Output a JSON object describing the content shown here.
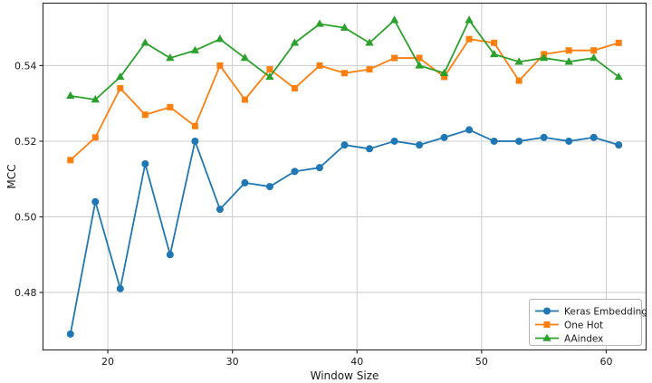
{
  "figure": {
    "background": "#ffffff"
  },
  "chart_data": {
    "type": "line",
    "title": "",
    "xlabel": "Window Size",
    "ylabel": "MCC",
    "x": [
      17,
      19,
      21,
      23,
      25,
      27,
      29,
      31,
      33,
      35,
      37,
      39,
      41,
      43,
      45,
      47,
      49,
      51,
      53,
      55,
      57,
      59,
      61
    ],
    "series": [
      {
        "name": "Keras Embedding",
        "color": "#1f77b4",
        "marker": "circle",
        "values": [
          0.469,
          0.504,
          0.481,
          0.514,
          0.49,
          0.52,
          0.502,
          0.509,
          0.508,
          0.512,
          0.513,
          0.519,
          0.518,
          0.52,
          0.519,
          0.521,
          0.523,
          0.52,
          0.52,
          0.521,
          0.52,
          0.521,
          0.519
        ]
      },
      {
        "name": "One Hot",
        "color": "#ff7f0e",
        "marker": "square",
        "values": [
          0.515,
          0.521,
          0.534,
          0.527,
          0.529,
          0.524,
          0.54,
          0.531,
          0.539,
          0.534,
          0.54,
          0.538,
          0.539,
          0.542,
          0.542,
          0.537,
          0.547,
          0.546,
          0.536,
          0.543,
          0.544,
          0.544,
          0.546
        ]
      },
      {
        "name": "AAindex",
        "color": "#2ca02c",
        "marker": "triangle",
        "values": [
          0.532,
          0.531,
          0.537,
          0.546,
          0.542,
          0.544,
          0.547,
          0.542,
          0.537,
          0.546,
          0.551,
          0.55,
          0.546,
          0.552,
          0.54,
          0.538,
          0.552,
          0.543,
          0.541,
          0.542,
          0.541,
          0.542,
          0.537
        ]
      }
    ],
    "xtick_values": [
      20,
      30,
      40,
      50,
      60
    ],
    "xtick_labels": [
      "20",
      "30",
      "40",
      "50",
      "60"
    ],
    "ytick_values": [
      0.48,
      0.5,
      0.52,
      0.54
    ],
    "ytick_labels": [
      "0.48",
      "0.50",
      "0.52",
      "0.54"
    ],
    "xlim": [
      14.8,
      63.2
    ],
    "ylim": [
      0.4648,
      0.5565
    ],
    "grid": true,
    "grid_color": "#cccccc",
    "axis_color": "#333333",
    "text_color": "#1a1a1a",
    "legend": {
      "position": "lower-right",
      "border_color": "#b4b4b4",
      "background": "#ffffff"
    }
  }
}
